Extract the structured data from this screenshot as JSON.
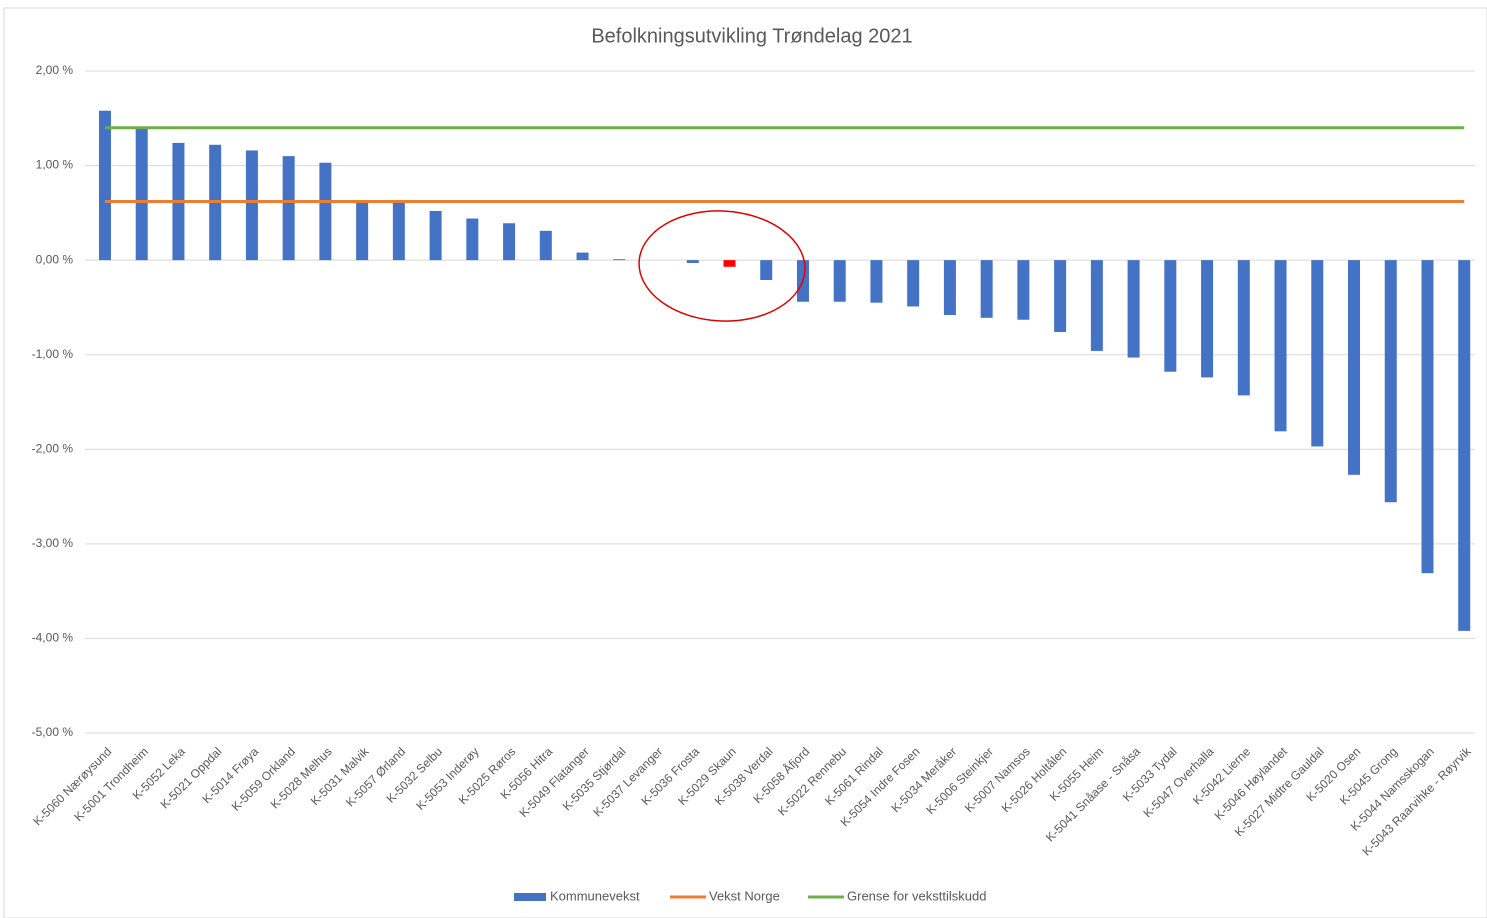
{
  "chart_data": {
    "type": "bar",
    "title": "Befolkningsutvikling Trøndelag 2021",
    "categories": [
      "K-5060 Nærøysund",
      "K-5001 Trondheim",
      "K-5052 Leka",
      "K-5021 Oppdal",
      "K-5014 Frøya",
      "K-5059 Orkland",
      "K-5028 Melhus",
      "K-5031 Malvik",
      "K-5057 Ørland",
      "K-5032 Selbu",
      "K-5053 Inderøy",
      "K-5025 Røros",
      "K-5056 Hitra",
      "K-5049 Flatanger",
      "K-5035 Stjørdal",
      "K-5037 Levanger",
      "K-5036 Frosta",
      "K-5029 Skaun",
      "K-5038 Verdal",
      "K-5058 Åfjord",
      "K-5022 Rennebu",
      "K-5061 Rindal",
      "K-5054 Indre Fosen",
      "K-5034 Meråker",
      "K-5006 Steinkjer",
      "K-5007 Namsos",
      "K-5026 Holtålen",
      "K-5055 Heim",
      "K-5041 Snåase - Snåsa",
      "K-5033 Tydal",
      "K-5047 Overhalla",
      "K-5042 Lierne",
      "K-5046 Høylandet",
      "K-5027 Midtre Gauldal",
      "K-5020 Osen",
      "K-5045 Grong",
      "K-5044 Namsskogan",
      "K-5043 Raarvihke - Røyrvik"
    ],
    "series": [
      {
        "name": "Kommunevekst",
        "type": "bar",
        "color": "#4472c4",
        "values": [
          1.58,
          1.4,
          1.24,
          1.22,
          1.16,
          1.1,
          1.03,
          0.63,
          0.63,
          0.52,
          0.44,
          0.39,
          0.31,
          0.08,
          0.01,
          0,
          -0.03,
          -0.07,
          -0.21,
          -0.44,
          -0.44,
          -0.45,
          -0.49,
          -0.58,
          -0.61,
          -0.63,
          -0.76,
          -0.96,
          -1.03,
          -1.18,
          -1.24,
          -1.43,
          -1.81,
          -1.97,
          -2.27,
          -2.56,
          -3.31,
          -3.92
        ],
        "colors": [
          "#4472c4",
          "#4472c4",
          "#4472c4",
          "#4472c4",
          "#4472c4",
          "#4472c4",
          "#4472c4",
          "#4472c4",
          "#4472c4",
          "#4472c4",
          "#4472c4",
          "#4472c4",
          "#4472c4",
          "#4472c4",
          "#4472c4",
          "#4472c4",
          "#4472c4",
          "#ff0000",
          "#4472c4",
          "#4472c4",
          "#4472c4",
          "#4472c4",
          "#4472c4",
          "#4472c4",
          "#4472c4",
          "#4472c4",
          "#4472c4",
          "#4472c4",
          "#4472c4",
          "#4472c4",
          "#4472c4",
          "#4472c4",
          "#4472c4",
          "#4472c4",
          "#4472c4",
          "#4472c4",
          "#4472c4",
          "#4472c4"
        ]
      },
      {
        "name": "Vekst Norge",
        "type": "line",
        "color": "#ed7d31",
        "values": [
          0.62,
          0.62,
          0.62,
          0.62,
          0.62,
          0.62,
          0.62,
          0.62,
          0.62,
          0.62,
          0.62,
          0.62,
          0.62,
          0.62,
          0.62,
          0.62,
          0.62,
          0.62,
          0.62,
          0.62,
          0.62,
          0.62,
          0.62,
          0.62,
          0.62,
          0.62,
          0.62,
          0.62,
          0.62,
          0.62,
          0.62,
          0.62,
          0.62,
          0.62,
          0.62,
          0.62,
          0.62,
          0.62
        ]
      },
      {
        "name": "Grense for veksttilskudd",
        "type": "line",
        "color": "#70ad47",
        "values": [
          1.4,
          1.4,
          1.4,
          1.4,
          1.4,
          1.4,
          1.4,
          1.4,
          1.4,
          1.4,
          1.4,
          1.4,
          1.4,
          1.4,
          1.4,
          1.4,
          1.4,
          1.4,
          1.4,
          1.4,
          1.4,
          1.4,
          1.4,
          1.4,
          1.4,
          1.4,
          1.4,
          1.4,
          1.4,
          1.4,
          1.4,
          1.4,
          1.4,
          1.4,
          1.4,
          1.4,
          1.4,
          1.4
        ]
      }
    ],
    "ylim": [
      -5,
      2
    ],
    "yticks": [
      {
        "value": 2,
        "label": "2,00 %"
      },
      {
        "value": 1,
        "label": "1,00 %"
      },
      {
        "value": 0,
        "label": "0,00 %"
      },
      {
        "value": -1,
        "label": "-1,00 %"
      },
      {
        "value": -2,
        "label": "-2,00 %"
      },
      {
        "value": -3,
        "label": "-3,00 %"
      },
      {
        "value": -4,
        "label": "-4,00 %"
      },
      {
        "value": -5,
        "label": "-5,00 %"
      }
    ],
    "grid": true,
    "legend": "bottom"
  }
}
